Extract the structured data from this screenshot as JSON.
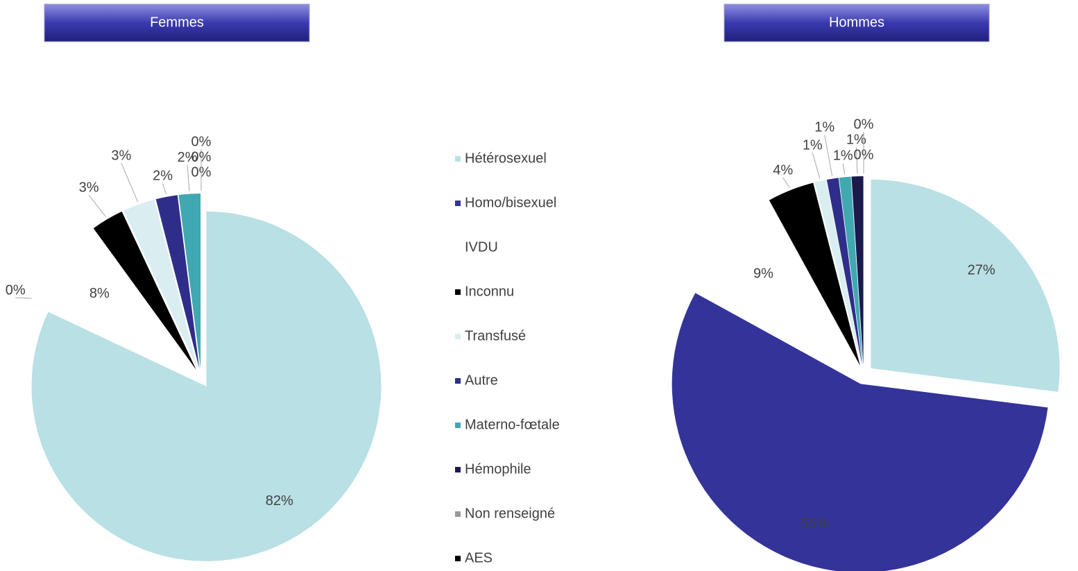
{
  "chart_data": [
    {
      "type": "pie",
      "title": "Femmes",
      "categories": [
        "Hétérosexuel",
        "Homo/bisexuel",
        "IVDU",
        "Inconnu",
        "Transfusé",
        "Autre",
        "Materno-fœtale",
        "Hémophile",
        "Non renseigné",
        "AES"
      ],
      "values": [
        82,
        0,
        8,
        3,
        3,
        2,
        2,
        0,
        0,
        0
      ],
      "value_labels": [
        "82%",
        "0%",
        "8%",
        "3%",
        "3%",
        "2%",
        "2%",
        "0%",
        "0%",
        "0%"
      ],
      "colors": [
        "#b9e0e4",
        "#333399",
        "#ffffff",
        "#000000",
        "#daeef1",
        "#2e2e8a",
        "#40a8b0",
        "#1a1a4d",
        "#999999",
        "#000000"
      ]
    },
    {
      "type": "pie",
      "title": "Hommes",
      "categories": [
        "Hétérosexuel",
        "Homo/bisexuel",
        "IVDU",
        "Inconnu",
        "Transfusé",
        "Autre",
        "Materno-fœtale",
        "Hémophile",
        "Non renseigné",
        "AES"
      ],
      "values": [
        27,
        56,
        9,
        4,
        1,
        1,
        1,
        1,
        0,
        0
      ],
      "value_labels": [
        "27%",
        "56%",
        "9%",
        "4%",
        "1%",
        "1%",
        "1%",
        "1%",
        "0%",
        "0%"
      ],
      "colors": [
        "#b9e0e4",
        "#333399",
        "#ffffff",
        "#000000",
        "#daeef1",
        "#2e2e8a",
        "#40a8b0",
        "#1a1a4d",
        "#999999",
        "#000000"
      ]
    }
  ]
}
